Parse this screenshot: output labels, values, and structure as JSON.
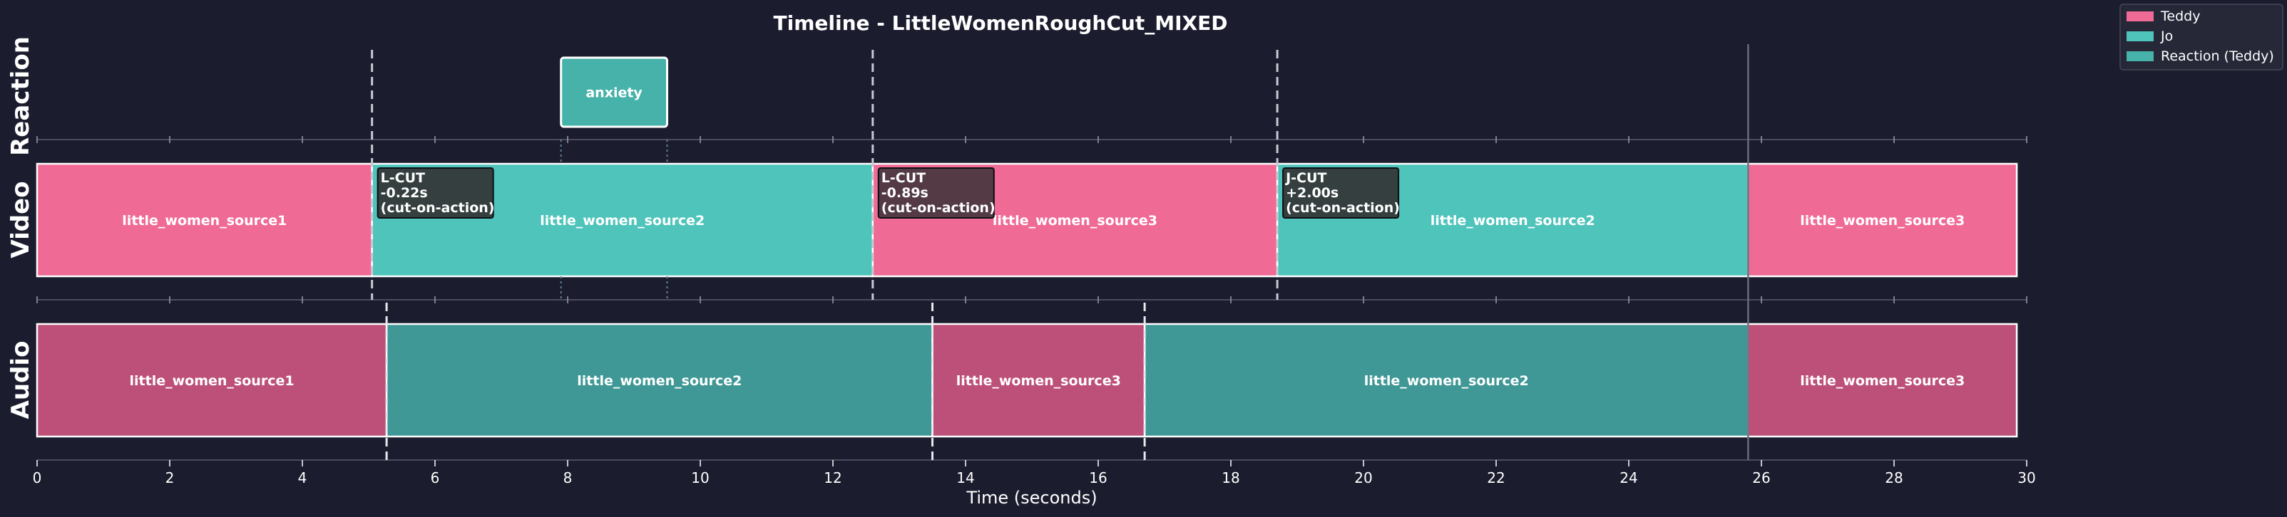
{
  "chart_data": {
    "type": "timeline",
    "title": "Timeline - LittleWomenRoughCut_MIXED",
    "xlabel": "Time (seconds)",
    "xlim": [
      0,
      30
    ],
    "xticks": [
      0,
      2,
      4,
      6,
      8,
      10,
      12,
      14,
      16,
      18,
      20,
      22,
      24,
      26,
      28,
      30
    ],
    "tracks": [
      "Reaction",
      "Video",
      "Audio"
    ],
    "colors": {
      "Teddy": "#f06a96",
      "Jo": "#4ec4bb",
      "Reaction (Teddy)": "#47b2aa",
      "audio_Teddy": "#bd5078",
      "audio_Jo": "#3f9896",
      "annotation_box": "#353f3f",
      "annotation_box_red": "#533a44"
    },
    "legend": {
      "placement": "top-right-outside",
      "entries": [
        {
          "label": "Teddy",
          "color": "#f06a96"
        },
        {
          "label": "Jo",
          "color": "#4ec4bb"
        },
        {
          "label": "Reaction (Teddy)",
          "color": "#47b2aa"
        }
      ]
    },
    "reaction_clips": [
      {
        "label": "anxiety",
        "start": 7.9,
        "end": 9.5,
        "speaker": "Reaction (Teddy)"
      }
    ],
    "video_clips": [
      {
        "label": "little_women_source1",
        "start": 0,
        "end": 5.05,
        "speaker": "Teddy"
      },
      {
        "label": "little_women_source2",
        "start": 5.05,
        "end": 12.6,
        "speaker": "Jo"
      },
      {
        "label": "little_women_source3",
        "start": 12.6,
        "end": 18.7,
        "speaker": "Teddy"
      },
      {
        "label": "little_women_source2",
        "start": 18.7,
        "end": 25.8,
        "speaker": "Jo"
      },
      {
        "label": "little_women_source3",
        "start": 25.8,
        "end": 29.85,
        "speaker": "Teddy"
      }
    ],
    "audio_clips": [
      {
        "label": "little_women_source1",
        "start": 0,
        "end": 5.27,
        "speaker": "Teddy"
      },
      {
        "label": "little_women_source2",
        "start": 5.27,
        "end": 13.5,
        "speaker": "Jo"
      },
      {
        "label": "little_women_source3",
        "start": 13.5,
        "end": 16.7,
        "speaker": "Teddy"
      },
      {
        "label": "little_women_source2",
        "start": 16.7,
        "end": 25.8,
        "speaker": "Jo"
      },
      {
        "label": "little_women_source3",
        "start": 25.8,
        "end": 29.85,
        "speaker": "Teddy"
      }
    ],
    "cut_markers": [
      5.05,
      12.6,
      18.7
    ],
    "audio_cut_markers": [
      5.27,
      13.5,
      16.7
    ],
    "end_marker": 25.8,
    "reaction_guides": [
      7.9,
      9.5
    ],
    "annotations": [
      {
        "lines": [
          "L-CUT",
          "-0.22s",
          "(cut-on-action)"
        ],
        "time": 5.05,
        "style": "neutral"
      },
      {
        "lines": [
          "L-CUT",
          "-0.89s",
          "(cut-on-action)"
        ],
        "time": 12.6,
        "style": "red"
      },
      {
        "lines": [
          "J-CUT",
          "+2.00s",
          "(cut-on-action)"
        ],
        "time": 18.7,
        "style": "neutral"
      }
    ]
  }
}
